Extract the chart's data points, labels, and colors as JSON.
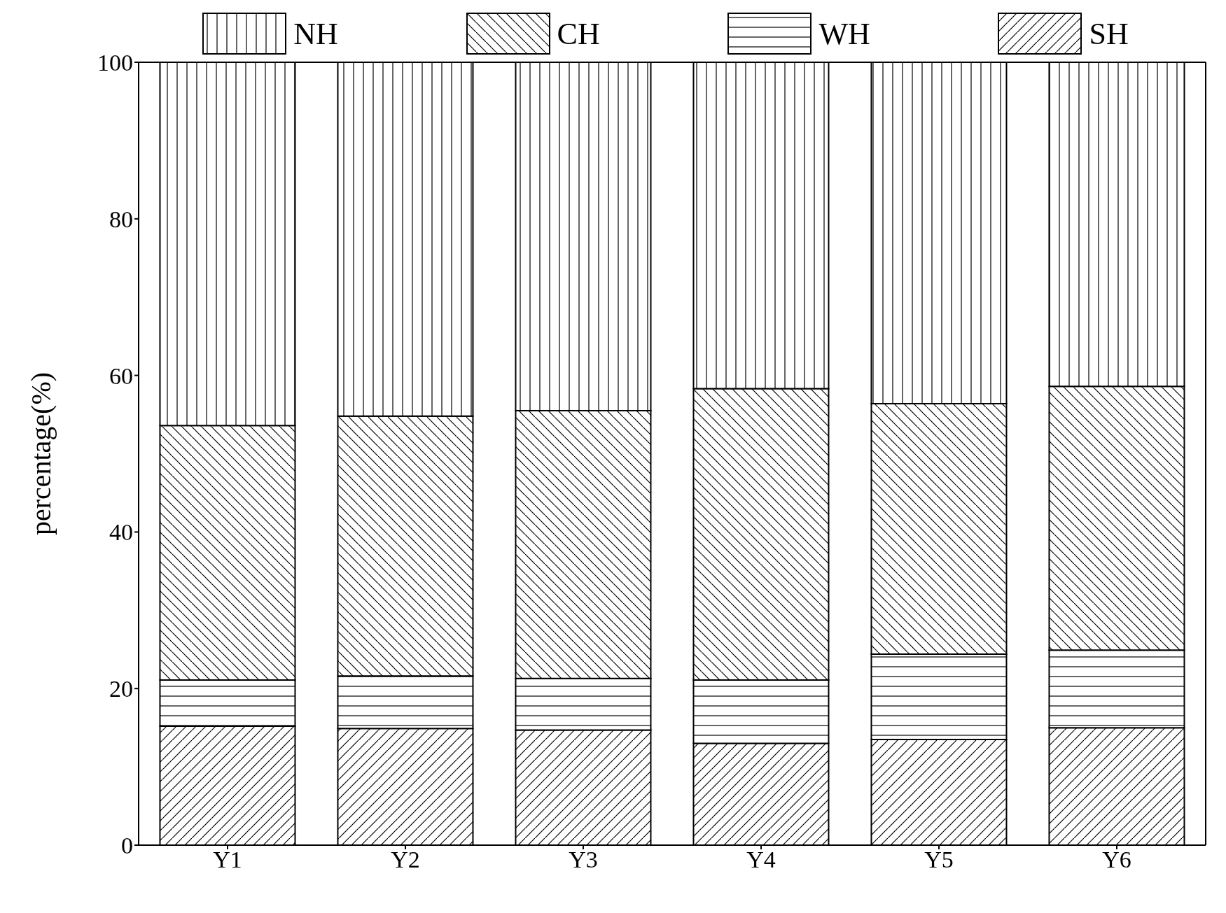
{
  "chart_data": {
    "type": "bar",
    "stacked": true,
    "ylabel": "percentage(%)",
    "categories": [
      "Y1",
      "Y2",
      "Y3",
      "Y4",
      "Y5",
      "Y6"
    ],
    "series": [
      {
        "name": "SH",
        "color": "#000000",
        "values": [
          15.2,
          14.9,
          14.7,
          13.0,
          13.5,
          15.0
        ]
      },
      {
        "name": "WH",
        "color": "#000000",
        "values": [
          5.9,
          6.7,
          6.6,
          8.1,
          10.9,
          9.9
        ]
      },
      {
        "name": "CH",
        "color": "#000000",
        "values": [
          32.5,
          33.2,
          34.2,
          37.2,
          32.0,
          33.7
        ]
      },
      {
        "name": "NH",
        "color": "#000000",
        "values": [
          46.4,
          45.2,
          44.5,
          41.7,
          43.6,
          41.4
        ]
      }
    ],
    "ylim": [
      0,
      100
    ],
    "yticks": [
      0,
      20,
      40,
      60,
      80,
      100
    ],
    "legend": "top",
    "grid": false
  }
}
